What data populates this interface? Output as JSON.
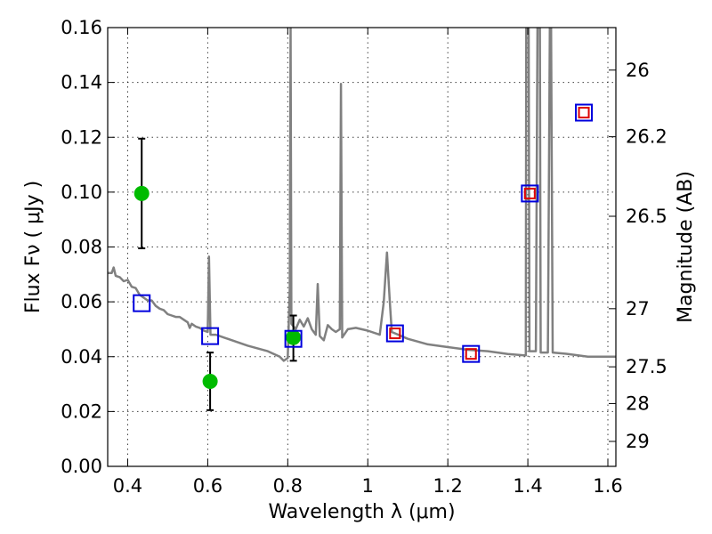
{
  "chart_data": {
    "type": "scatter",
    "title": "",
    "xlabel": "Wavelength  λ (μm)",
    "ylabel": "Flux  Fν  ( μJy )",
    "y2label": "Magnitude (AB)",
    "xlim": [
      0.35,
      1.62
    ],
    "ylim": [
      0.0,
      0.16
    ],
    "grid": true,
    "x_ticks": [
      0.4,
      0.6,
      0.8,
      1.0,
      1.2,
      1.4,
      1.6
    ],
    "x_tick_labels": [
      "0.4",
      "0.6",
      "0.8",
      "1",
      "1.2",
      "1.4",
      "1.6"
    ],
    "y_ticks": [
      0.0,
      0.02,
      0.04,
      0.06,
      0.08,
      0.1,
      0.12,
      0.14,
      0.16
    ],
    "y_tick_labels": [
      "0.00",
      "0.02",
      "0.04",
      "0.06",
      "0.08",
      "0.10",
      "0.12",
      "0.14",
      "0.16"
    ],
    "y2_ticks": [
      {
        "label": "26",
        "flux": 0.1445
      },
      {
        "label": "26.2",
        "flux": 0.1202
      },
      {
        "label": "26.5",
        "flux": 0.0912
      },
      {
        "label": "27",
        "flux": 0.0575
      },
      {
        "label": "27.5",
        "flux": 0.0363
      },
      {
        "label": "28",
        "flux": 0.0229
      },
      {
        "label": "29",
        "flux": 0.0091
      }
    ],
    "series": [
      {
        "kind": "line",
        "color": "#808080",
        "points": [
          [
            0.35,
            0.0705
          ],
          [
            0.36,
            0.0705
          ],
          [
            0.365,
            0.0725
          ],
          [
            0.37,
            0.0695
          ],
          [
            0.38,
            0.069
          ],
          [
            0.39,
            0.0675
          ],
          [
            0.4,
            0.068
          ],
          [
            0.41,
            0.0655
          ],
          [
            0.42,
            0.065
          ],
          [
            0.43,
            0.0625
          ],
          [
            0.44,
            0.0615
          ],
          [
            0.45,
            0.0605
          ],
          [
            0.46,
            0.0605
          ],
          [
            0.47,
            0.0585
          ],
          [
            0.48,
            0.0575
          ],
          [
            0.49,
            0.057
          ],
          [
            0.5,
            0.0555
          ],
          [
            0.51,
            0.055
          ],
          [
            0.52,
            0.0545
          ],
          [
            0.53,
            0.0545
          ],
          [
            0.54,
            0.0535
          ],
          [
            0.55,
            0.0525
          ],
          [
            0.555,
            0.0505
          ],
          [
            0.56,
            0.052
          ],
          [
            0.57,
            0.051
          ],
          [
            0.58,
            0.0505
          ],
          [
            0.59,
            0.0495
          ],
          [
            0.6,
            0.049
          ],
          [
            0.603,
            0.0765
          ],
          [
            0.607,
            0.048
          ],
          [
            0.62,
            0.048
          ],
          [
            0.65,
            0.0465
          ],
          [
            0.7,
            0.044
          ],
          [
            0.75,
            0.042
          ],
          [
            0.78,
            0.04
          ],
          [
            0.79,
            0.0385
          ],
          [
            0.8,
            0.0395
          ],
          [
            0.805,
            0.065
          ],
          [
            0.807,
            0.16
          ],
          [
            0.809,
            0.052
          ],
          [
            0.82,
            0.05
          ],
          [
            0.83,
            0.0535
          ],
          [
            0.84,
            0.051
          ],
          [
            0.85,
            0.054
          ],
          [
            0.86,
            0.05
          ],
          [
            0.87,
            0.048
          ],
          [
            0.875,
            0.0665
          ],
          [
            0.88,
            0.0475
          ],
          [
            0.89,
            0.046
          ],
          [
            0.9,
            0.0515
          ],
          [
            0.91,
            0.05
          ],
          [
            0.92,
            0.049
          ],
          [
            0.93,
            0.05
          ],
          [
            0.933,
            0.1395
          ],
          [
            0.936,
            0.047
          ],
          [
            0.95,
            0.05
          ],
          [
            0.97,
            0.0505
          ],
          [
            1.0,
            0.0495
          ],
          [
            1.03,
            0.048
          ],
          [
            1.04,
            0.06
          ],
          [
            1.048,
            0.078
          ],
          [
            1.055,
            0.06
          ],
          [
            1.06,
            0.049
          ],
          [
            1.1,
            0.0465
          ],
          [
            1.15,
            0.0445
          ],
          [
            1.2,
            0.0435
          ],
          [
            1.25,
            0.0425
          ],
          [
            1.3,
            0.042
          ],
          [
            1.35,
            0.041
          ],
          [
            1.39,
            0.0405
          ],
          [
            1.395,
            0.0405
          ],
          [
            1.396,
            0.16
          ],
          [
            1.402,
            0.16
          ],
          [
            1.404,
            0.042
          ],
          [
            1.42,
            0.042
          ],
          [
            1.424,
            0.16
          ],
          [
            1.43,
            0.16
          ],
          [
            1.432,
            0.0415
          ],
          [
            1.45,
            0.0415
          ],
          [
            1.455,
            0.16
          ],
          [
            1.458,
            0.16
          ],
          [
            1.462,
            0.0415
          ],
          [
            1.5,
            0.041
          ],
          [
            1.55,
            0.04
          ],
          [
            1.58,
            0.04
          ],
          [
            1.62,
            0.04
          ]
        ]
      },
      {
        "kind": "scatter",
        "marker": "circle",
        "color": "#00bb00",
        "points": [
          {
            "x": 0.435,
            "y": 0.0995,
            "ylo": 0.0795,
            "yhi": 0.1195
          },
          {
            "x": 0.606,
            "y": 0.031,
            "ylo": 0.0205,
            "yhi": 0.0415
          },
          {
            "x": 0.814,
            "y": 0.047,
            "ylo": 0.0385,
            "yhi": 0.055
          }
        ]
      },
      {
        "kind": "scatter",
        "marker": "square-open",
        "color": "#0000dd",
        "points": [
          {
            "x": 0.435,
            "y": 0.0595
          },
          {
            "x": 0.606,
            "y": 0.0475
          },
          {
            "x": 0.814,
            "y": 0.0465
          },
          {
            "x": 1.068,
            "y": 0.0485
          },
          {
            "x": 1.258,
            "y": 0.041
          },
          {
            "x": 1.405,
            "y": 0.0995
          },
          {
            "x": 1.54,
            "y": 0.129
          }
        ]
      },
      {
        "kind": "scatter",
        "marker": "square-open-small",
        "color": "#dd0000",
        "points": [
          {
            "x": 1.068,
            "y": 0.0485
          },
          {
            "x": 1.258,
            "y": 0.041
          },
          {
            "x": 1.405,
            "y": 0.0995
          },
          {
            "x": 1.54,
            "y": 0.129
          }
        ]
      }
    ]
  }
}
